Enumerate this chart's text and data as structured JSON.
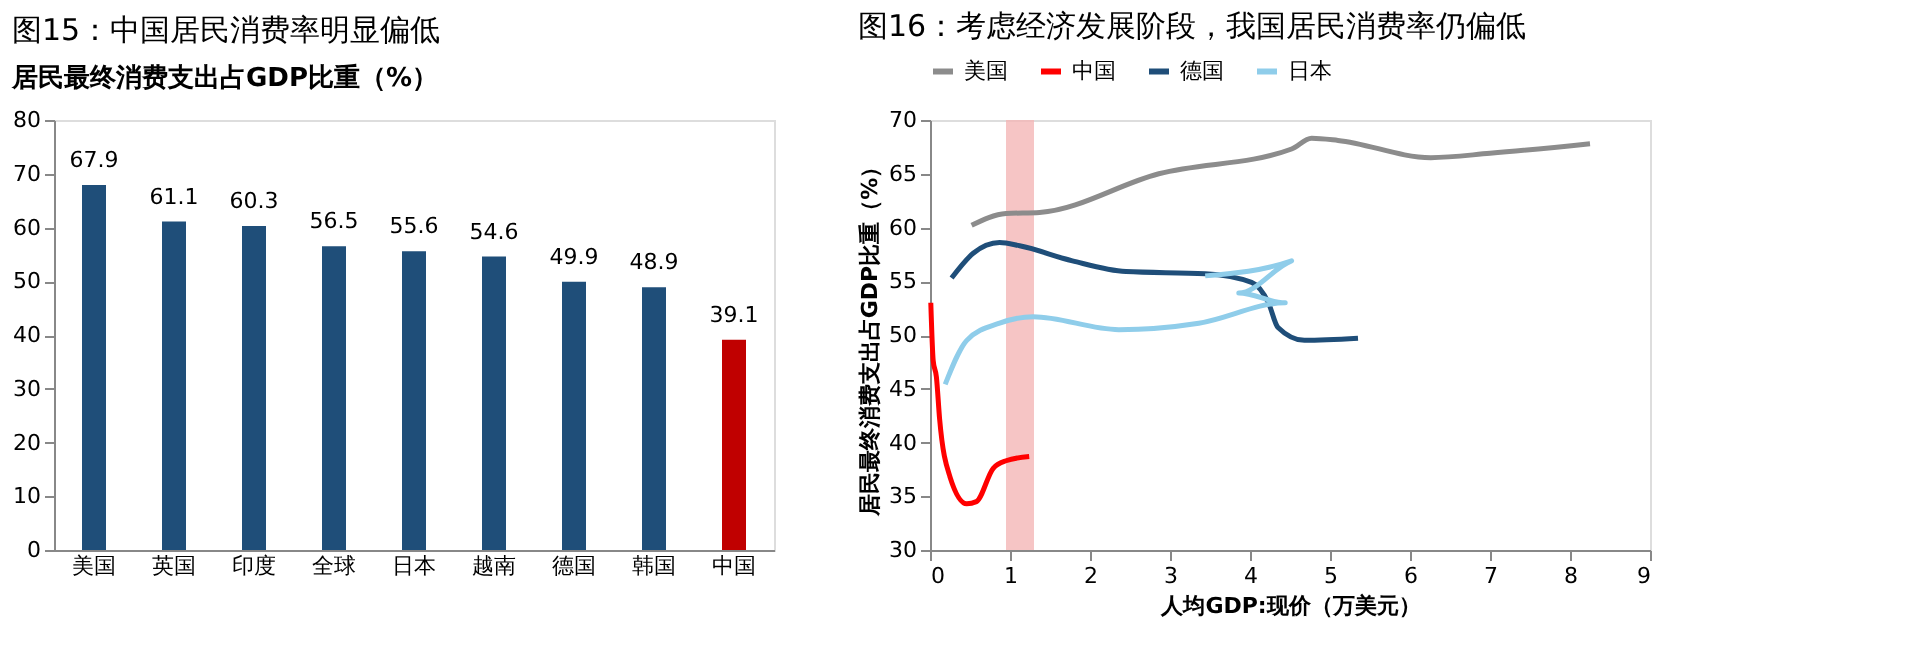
{
  "chart_data": [
    {
      "type": "bar",
      "title": "图15：中国居民消费率明显偏低",
      "subtitle": "居民最终消费支出占GDP比重（%）",
      "categories": [
        "美国",
        "英国",
        "印度",
        "全球",
        "日本",
        "越南",
        "德国",
        "韩国",
        "中国"
      ],
      "values": [
        67.9,
        61.1,
        60.3,
        56.5,
        55.6,
        54.6,
        49.9,
        48.9,
        39.1
      ],
      "colors": [
        "#1f4e79",
        "#1f4e79",
        "#1f4e79",
        "#1f4e79",
        "#1f4e79",
        "#1f4e79",
        "#1f4e79",
        "#1f4e79",
        "#c00000"
      ],
      "ylim": [
        0,
        80
      ],
      "yticks": [
        0,
        10,
        20,
        30,
        40,
        50,
        60,
        70,
        80
      ],
      "data_labels": true,
      "grid": false
    },
    {
      "type": "line",
      "title": "图16：考虑经济发展阶段，我国居民消费率仍偏低",
      "xlabel": "人均GDP:现价（万美元）",
      "ylabel": "居民最终消费支出占GDP比重（%）",
      "series": [
        {
          "name": "美国",
          "color": "#8c8c8c",
          "x": [
            0.52,
            0.95,
            1.37,
            2.86,
            4.52,
            4.77,
            5.1,
            6.26,
            7.0,
            8.25
          ],
          "values": [
            60.2,
            61.3,
            61.4,
            65.0,
            67.3,
            68.3,
            68.1,
            66.5,
            66.9,
            67.8
          ]
        },
        {
          "name": "中国",
          "color": "#ff0000",
          "x": [
            0.01,
            0.04,
            0.08,
            0.12,
            0.25,
            0.46,
            0.58,
            0.79,
            0.95,
            1.24
          ],
          "values": [
            53.0,
            47.6,
            46.1,
            42.2,
            36.8,
            34.3,
            34.5,
            37.6,
            38.3,
            38.7
          ]
        },
        {
          "name": "德国",
          "color": "#1f4e79",
          "x": [
            0.27,
            0.54,
            0.87,
            1.12,
            1.78,
            2.45,
            3.44,
            4.02,
            4.23,
            4.35,
            4.68,
            5.35
          ],
          "values": [
            55.3,
            57.6,
            58.6,
            58.3,
            56.9,
            55.9,
            55.7,
            54.9,
            53.0,
            50.7,
            49.5,
            49.7
          ]
        },
        {
          "name": "日本",
          "color": "#8fcdea",
          "x": [
            0.19,
            0.46,
            0.87,
            1.29,
            2.36,
            3.36,
            4.44,
            3.86,
            4.52,
            3.44
          ],
          "values": [
            45.4,
            49.5,
            51.1,
            51.7,
            50.5,
            51.1,
            53.0,
            53.9,
            56.9,
            55.5
          ]
        }
      ],
      "xlim": [
        0,
        9
      ],
      "xticks": [
        0,
        1,
        2,
        3,
        4,
        5,
        6,
        7,
        8,
        9
      ],
      "ylim": [
        30,
        70
      ],
      "yticks": [
        30,
        35,
        40,
        45,
        50,
        55,
        60,
        65,
        70
      ],
      "bands": [
        {
          "axis": "x",
          "from": 0.95,
          "to": 1.3,
          "color": "#f4b6b6"
        }
      ],
      "legend": "top",
      "grid": false,
      "marker": "none",
      "line_style": "solid"
    }
  ]
}
